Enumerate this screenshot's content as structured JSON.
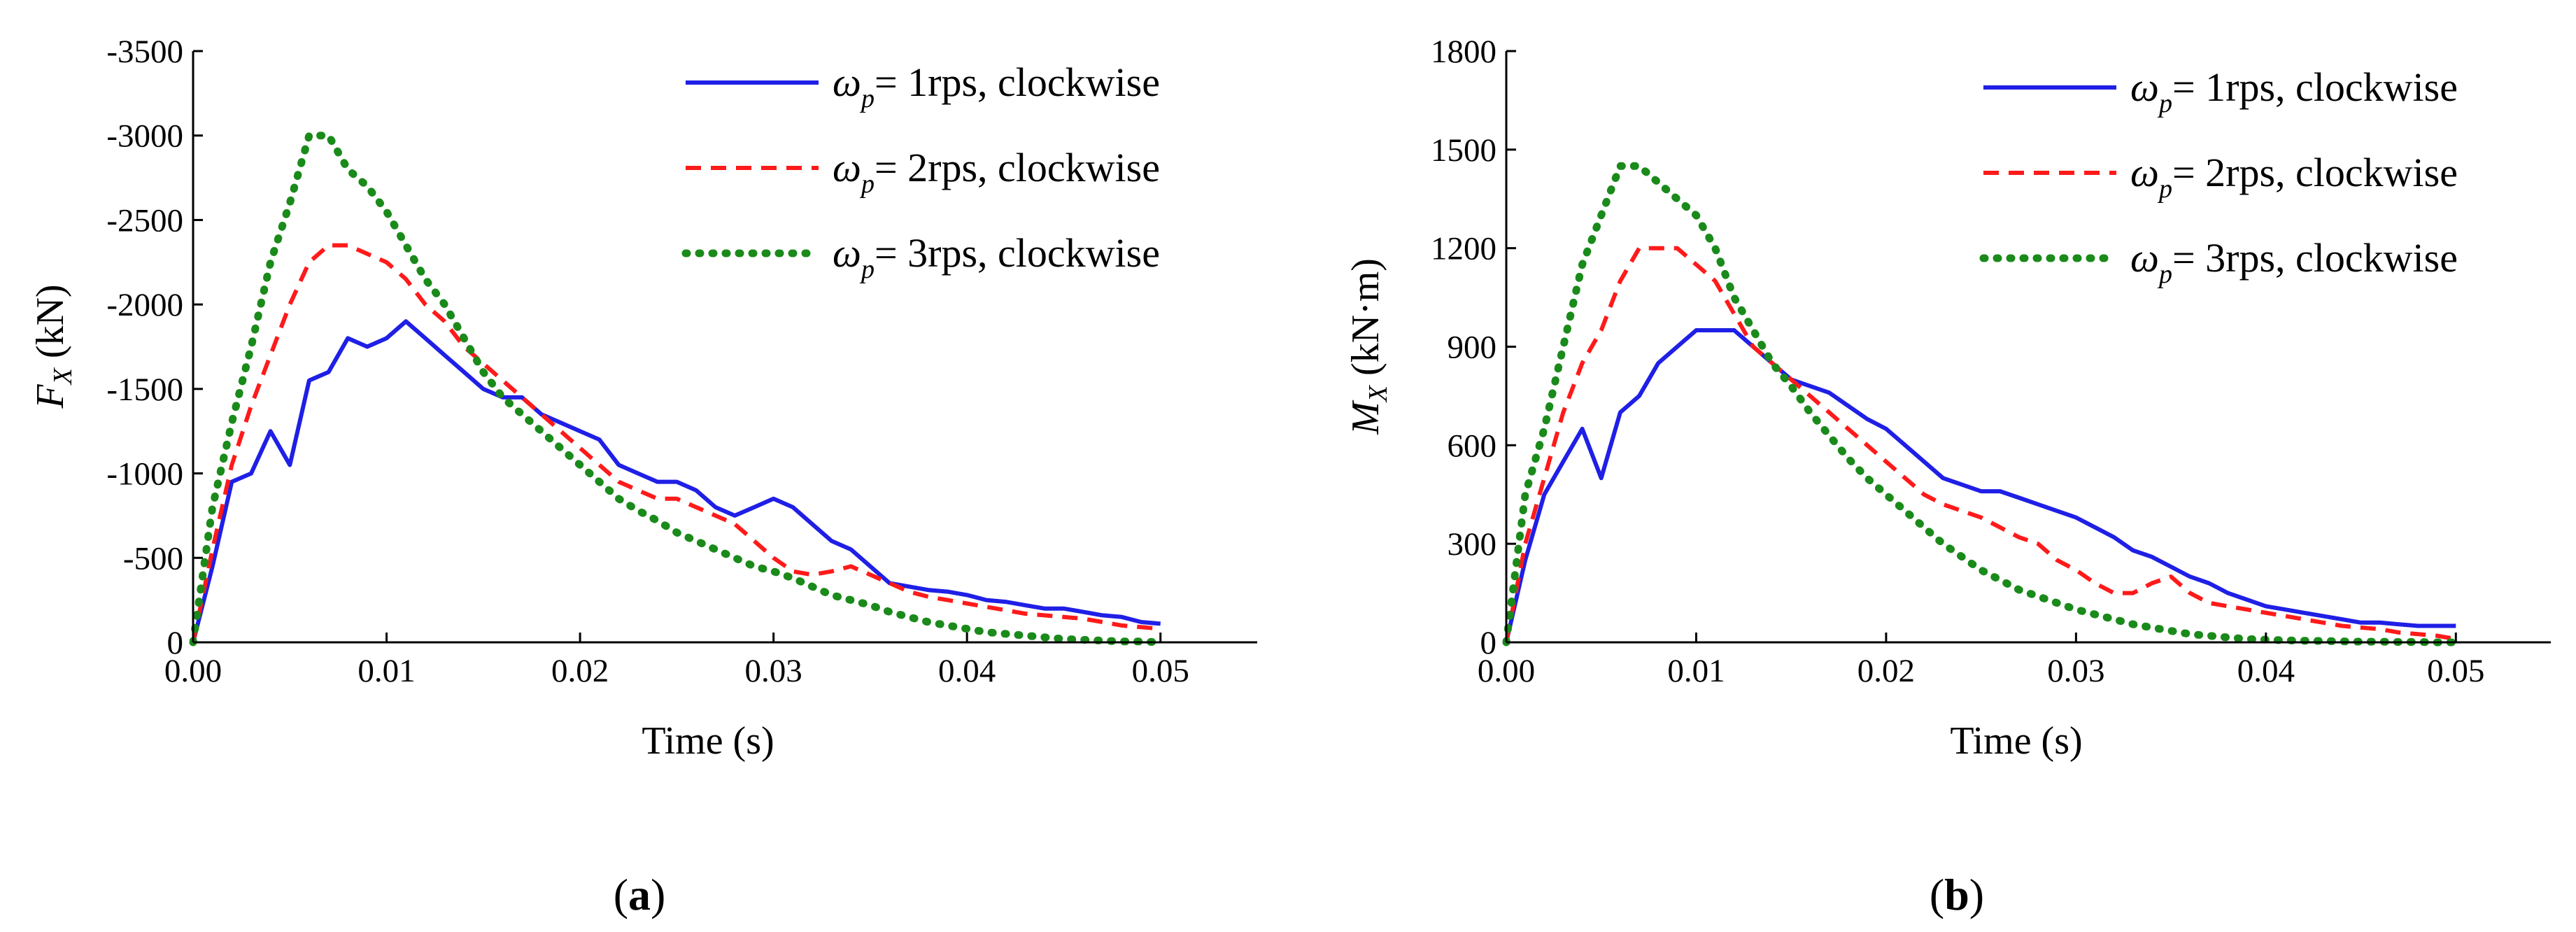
{
  "figure": {
    "panels": [
      {
        "label_open": "(",
        "label_letter": "a",
        "label_close": ")",
        "ylabel_main": "F",
        "ylabel_sub": "X",
        "ylabel_unit": " (kN)"
      },
      {
        "label_open": "(",
        "label_letter": "b",
        "label_close": ")",
        "ylabel_main": "M",
        "ylabel_sub": "X",
        "ylabel_unit": " (kN·m)"
      }
    ],
    "legend": [
      {
        "symbol": "ω",
        "sub": "p",
        "text": "= 1rps, clockwise"
      },
      {
        "symbol": "ω",
        "sub": "p",
        "text": "= 2rps, clockwise"
      },
      {
        "symbol": "ω",
        "sub": "p",
        "text": "= 3rps, clockwise"
      }
    ]
  },
  "colors": {
    "series_1rps": "#1f1fe6",
    "series_2rps": "#ff1a1a",
    "series_3rps": "#1a8a1a",
    "axis": "#000000"
  },
  "chart_data": [
    {
      "type": "line",
      "title": "",
      "xlabel": "Time (s)",
      "ylabel": "F_X (kN)",
      "xlim": [
        0,
        0.055
      ],
      "ylim": [
        0,
        -3500
      ],
      "y_inverted": true,
      "xticks": [
        0.0,
        0.01,
        0.02,
        0.03,
        0.04,
        0.05
      ],
      "xtick_labels": [
        "0.00",
        "0.01",
        "0.02",
        "0.03",
        "0.04",
        "0.05"
      ],
      "yticks": [
        0,
        -500,
        -1000,
        -1500,
        -2000,
        -2500,
        -3000,
        -3500
      ],
      "ytick_labels": [
        "0",
        "-500",
        "-1000",
        "-1500",
        "-2000",
        "-2500",
        "-3000",
        "-3500"
      ],
      "grid": false,
      "legend_position": "top-right",
      "series": [
        {
          "name": "ωp= 1rps, clockwise",
          "style": "solid",
          "x": [
            0.0,
            0.001,
            0.002,
            0.003,
            0.004,
            0.005,
            0.006,
            0.007,
            0.008,
            0.009,
            0.01,
            0.011,
            0.012,
            0.013,
            0.014,
            0.015,
            0.016,
            0.017,
            0.018,
            0.019,
            0.02,
            0.021,
            0.022,
            0.023,
            0.024,
            0.025,
            0.026,
            0.027,
            0.028,
            0.029,
            0.03,
            0.031,
            0.032,
            0.033,
            0.034,
            0.035,
            0.036,
            0.037,
            0.038,
            0.039,
            0.04,
            0.041,
            0.042,
            0.043,
            0.044,
            0.045,
            0.046,
            0.047,
            0.048,
            0.049,
            0.05
          ],
          "y": [
            0,
            -450,
            -950,
            -1000,
            -1250,
            -1050,
            -1550,
            -1600,
            -1800,
            -1750,
            -1800,
            -1900,
            -1800,
            -1700,
            -1600,
            -1500,
            -1450,
            -1450,
            -1350,
            -1300,
            -1250,
            -1200,
            -1050,
            -1000,
            -950,
            -950,
            -900,
            -800,
            -750,
            -800,
            -850,
            -800,
            -700,
            -600,
            -550,
            -450,
            -350,
            -330,
            -310,
            -300,
            -280,
            -250,
            -240,
            -220,
            -200,
            -200,
            -180,
            -160,
            -150,
            -120,
            -110
          ]
        },
        {
          "name": "ωp= 2rps, clockwise",
          "style": "dashed",
          "x": [
            0.0,
            0.001,
            0.002,
            0.003,
            0.004,
            0.005,
            0.006,
            0.007,
            0.008,
            0.009,
            0.01,
            0.011,
            0.012,
            0.013,
            0.014,
            0.015,
            0.016,
            0.017,
            0.018,
            0.019,
            0.02,
            0.021,
            0.022,
            0.023,
            0.024,
            0.025,
            0.026,
            0.027,
            0.028,
            0.029,
            0.03,
            0.031,
            0.032,
            0.033,
            0.034,
            0.035,
            0.036,
            0.037,
            0.038,
            0.039,
            0.04,
            0.041,
            0.042,
            0.043,
            0.044,
            0.045,
            0.046,
            0.047,
            0.048,
            0.049,
            0.05
          ],
          "y": [
            0,
            -550,
            -1050,
            -1400,
            -1700,
            -2000,
            -2250,
            -2350,
            -2350,
            -2300,
            -2250,
            -2150,
            -2000,
            -1900,
            -1750,
            -1650,
            -1550,
            -1450,
            -1350,
            -1250,
            -1150,
            -1050,
            -950,
            -900,
            -850,
            -850,
            -800,
            -750,
            -700,
            -600,
            -500,
            -420,
            -400,
            -420,
            -450,
            -400,
            -350,
            -300,
            -270,
            -250,
            -230,
            -210,
            -190,
            -170,
            -160,
            -150,
            -140,
            -120,
            -100,
            -90,
            -80
          ]
        },
        {
          "name": "ωp= 3rps, clockwise",
          "style": "dotted",
          "x": [
            0.0,
            0.001,
            0.002,
            0.003,
            0.004,
            0.005,
            0.006,
            0.007,
            0.008,
            0.009,
            0.01,
            0.011,
            0.012,
            0.013,
            0.014,
            0.015,
            0.016,
            0.017,
            0.018,
            0.019,
            0.02,
            0.021,
            0.022,
            0.023,
            0.024,
            0.025,
            0.026,
            0.027,
            0.028,
            0.029,
            0.03,
            0.031,
            0.032,
            0.033,
            0.034,
            0.035,
            0.036,
            0.037,
            0.038,
            0.039,
            0.04,
            0.041,
            0.042,
            0.043,
            0.044,
            0.045,
            0.046,
            0.047,
            0.048,
            0.049,
            0.05
          ],
          "y": [
            0,
            -800,
            -1300,
            -1750,
            -2250,
            -2600,
            -3000,
            -3000,
            -2800,
            -2700,
            -2550,
            -2350,
            -2150,
            -2000,
            -1800,
            -1600,
            -1450,
            -1350,
            -1250,
            -1150,
            -1050,
            -950,
            -850,
            -780,
            -720,
            -650,
            -600,
            -550,
            -500,
            -450,
            -420,
            -380,
            -330,
            -280,
            -250,
            -220,
            -180,
            -150,
            -120,
            -100,
            -80,
            -60,
            -50,
            -40,
            -30,
            -20,
            -15,
            -10,
            -5,
            -5,
            0
          ]
        }
      ]
    },
    {
      "type": "line",
      "title": "",
      "xlabel": "Time (s)",
      "ylabel": "M_X (kN·m)",
      "xlim": [
        0,
        0.055
      ],
      "ylim": [
        0,
        1800
      ],
      "xticks": [
        0.0,
        0.01,
        0.02,
        0.03,
        0.04,
        0.05
      ],
      "xtick_labels": [
        "0.00",
        "0.01",
        "0.02",
        "0.03",
        "0.04",
        "0.05"
      ],
      "yticks": [
        0,
        300,
        600,
        900,
        1200,
        1500,
        1800
      ],
      "ytick_labels": [
        "0",
        "300",
        "600",
        "900",
        "1200",
        "1500",
        "1800"
      ],
      "grid": false,
      "legend_position": "top-right",
      "series": [
        {
          "name": "ωp= 1rps, clockwise",
          "style": "solid",
          "x": [
            0.0,
            0.001,
            0.002,
            0.003,
            0.004,
            0.005,
            0.006,
            0.007,
            0.008,
            0.009,
            0.01,
            0.011,
            0.012,
            0.013,
            0.014,
            0.015,
            0.016,
            0.017,
            0.018,
            0.019,
            0.02,
            0.021,
            0.022,
            0.023,
            0.024,
            0.025,
            0.026,
            0.027,
            0.028,
            0.029,
            0.03,
            0.031,
            0.032,
            0.033,
            0.034,
            0.035,
            0.036,
            0.037,
            0.038,
            0.039,
            0.04,
            0.041,
            0.042,
            0.043,
            0.044,
            0.045,
            0.046,
            0.047,
            0.048,
            0.049,
            0.05
          ],
          "y": [
            0,
            250,
            450,
            550,
            650,
            500,
            700,
            750,
            850,
            900,
            950,
            950,
            950,
            900,
            850,
            800,
            780,
            760,
            720,
            680,
            650,
            600,
            550,
            500,
            480,
            460,
            460,
            440,
            420,
            400,
            380,
            350,
            320,
            280,
            260,
            230,
            200,
            180,
            150,
            130,
            110,
            100,
            90,
            80,
            70,
            60,
            60,
            55,
            50,
            50,
            50
          ]
        },
        {
          "name": "ωp= 2rps, clockwise",
          "style": "dashed",
          "x": [
            0.0,
            0.001,
            0.002,
            0.003,
            0.004,
            0.005,
            0.006,
            0.007,
            0.008,
            0.009,
            0.01,
            0.011,
            0.012,
            0.013,
            0.014,
            0.015,
            0.016,
            0.017,
            0.018,
            0.019,
            0.02,
            0.021,
            0.022,
            0.023,
            0.024,
            0.025,
            0.026,
            0.027,
            0.028,
            0.029,
            0.03,
            0.031,
            0.032,
            0.033,
            0.034,
            0.035,
            0.036,
            0.037,
            0.038,
            0.039,
            0.04,
            0.041,
            0.042,
            0.043,
            0.044,
            0.045,
            0.046,
            0.047,
            0.048,
            0.049,
            0.05
          ],
          "y": [
            0,
            300,
            500,
            700,
            850,
            950,
            1100,
            1200,
            1200,
            1200,
            1150,
            1100,
            1000,
            900,
            850,
            800,
            750,
            700,
            650,
            600,
            550,
            500,
            450,
            420,
            400,
            380,
            350,
            320,
            300,
            250,
            220,
            180,
            150,
            150,
            180,
            200,
            150,
            120,
            110,
            100,
            90,
            80,
            70,
            60,
            50,
            45,
            40,
            30,
            25,
            20,
            10
          ]
        },
        {
          "name": "ωp= 3rps, clockwise",
          "style": "dotted",
          "x": [
            0.0,
            0.001,
            0.002,
            0.003,
            0.004,
            0.005,
            0.006,
            0.007,
            0.008,
            0.009,
            0.01,
            0.011,
            0.012,
            0.013,
            0.014,
            0.015,
            0.016,
            0.017,
            0.018,
            0.019,
            0.02,
            0.021,
            0.022,
            0.023,
            0.024,
            0.025,
            0.026,
            0.027,
            0.028,
            0.029,
            0.03,
            0.031,
            0.032,
            0.033,
            0.034,
            0.035,
            0.036,
            0.037,
            0.038,
            0.039,
            0.04,
            0.041,
            0.042,
            0.043,
            0.044,
            0.045,
            0.046,
            0.047,
            0.048,
            0.049,
            0.05
          ],
          "y": [
            0,
            450,
            650,
            900,
            1150,
            1300,
            1450,
            1450,
            1400,
            1350,
            1300,
            1200,
            1050,
            950,
            850,
            780,
            700,
            630,
            560,
            500,
            450,
            400,
            350,
            300,
            260,
            220,
            190,
            160,
            140,
            120,
            100,
            85,
            70,
            55,
            45,
            35,
            25,
            20,
            15,
            10,
            8,
            6,
            5,
            4,
            3,
            2,
            2,
            1,
            1,
            0,
            0
          ]
        }
      ]
    }
  ]
}
